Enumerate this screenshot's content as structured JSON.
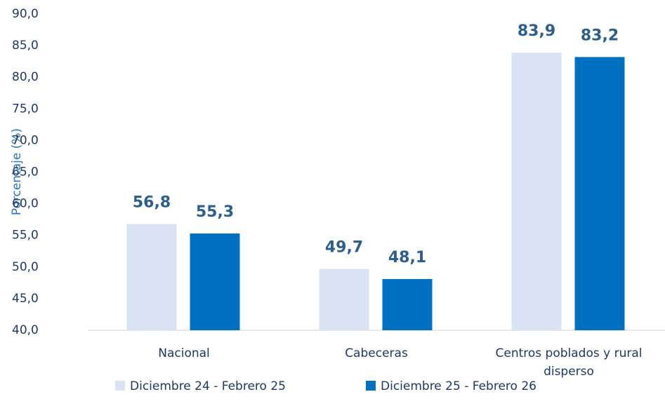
{
  "chart_data": {
    "type": "bar",
    "y_label": "Porcentaje (%)",
    "categories": [
      "Nacional",
      "Cabeceras",
      "Centros poblados y rural disperso"
    ],
    "series": [
      {
        "name": "Diciembre 24 - Febrero 25",
        "color": "#dae3f3",
        "values": [
          56.8,
          49.7,
          83.9
        ],
        "value_labels": [
          "56,8",
          "49,7",
          "83,9"
        ]
      },
      {
        "name": "Diciembre 25 - Febrero 26",
        "color": "#0070c0",
        "values": [
          55.3,
          48.1,
          83.2
        ],
        "value_labels": [
          "55,3",
          "48,1",
          "83,2"
        ]
      }
    ],
    "ylim": [
      40,
      90
    ],
    "yticks": [
      {
        "value": 40,
        "label": "40,0"
      },
      {
        "value": 45,
        "label": "45,0"
      },
      {
        "value": 50,
        "label": "50,0"
      },
      {
        "value": 55,
        "label": "55,0"
      },
      {
        "value": 60,
        "label": "60,0"
      },
      {
        "value": 65,
        "label": "65,0"
      },
      {
        "value": 70,
        "label": "70,0"
      },
      {
        "value": 75,
        "label": "75,0"
      },
      {
        "value": 80,
        "label": "80,0"
      },
      {
        "value": 85,
        "label": "85,0"
      },
      {
        "value": 90,
        "label": "90,0"
      }
    ],
    "grid": false,
    "legend": "bottom"
  }
}
